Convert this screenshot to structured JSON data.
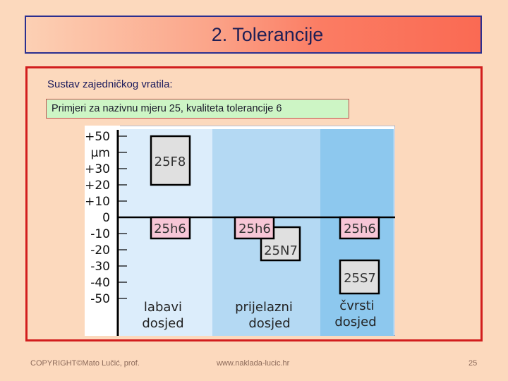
{
  "title": "2. Tolerancije",
  "heading": "Sustav zajedničkog vratila:",
  "example": "Primjeri za nazivnu mjeru 25, kvaliteta tolerancije 6",
  "diagram": {
    "scale_labels": [
      "+50",
      "µm",
      "+30",
      "+20",
      "+10",
      "0",
      "-10",
      "-20",
      "-30",
      "-40",
      "-50"
    ],
    "zones": [
      {
        "line1": "labavi",
        "line2": "dosjed"
      },
      {
        "line1": "prijelazni",
        "line2": "dosjed"
      },
      {
        "line1": "čvrsti",
        "line2": "dosjed"
      }
    ],
    "boxes": {
      "f8": "25F8",
      "h6_labavi": "25h6",
      "h6_prijelazni": "25h6",
      "n7": "25N7",
      "h6_cvrsti": "25h6",
      "s7": "25S7"
    },
    "colors": {
      "zone_labavi": "#dcedfb",
      "zone_prijelazni": "#b4d9f3",
      "zone_cvrsti": "#8dc8ee",
      "shaft_tolerance": "#f7c6d6",
      "hole_tolerance": "#e0e0e0"
    }
  },
  "footer": {
    "copyright": "COPYRIGHT©Mato Lučić, prof.",
    "website": "www.naklada-lucic.hr",
    "page": "25"
  }
}
